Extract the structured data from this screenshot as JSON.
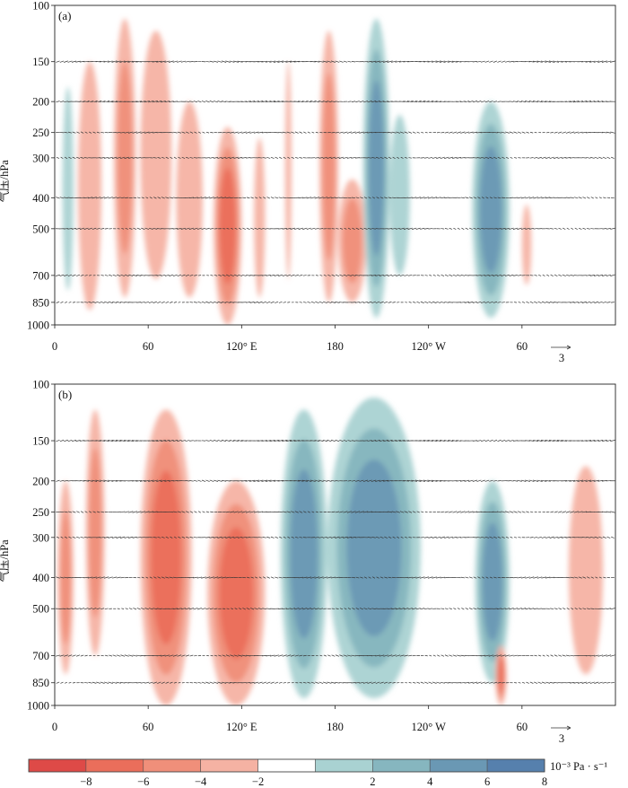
{
  "chart_data": {
    "type": "heatmap",
    "panels": [
      {
        "label": "(a)",
        "ylabel": "气压/hPa",
        "x_ticks": [
          "0",
          "60",
          "120° E",
          "180",
          "120° W",
          "60"
        ],
        "x_tick_positions_lon": [
          0,
          60,
          120,
          180,
          240,
          300
        ],
        "xlim": [
          0,
          360
        ],
        "y_ticks": [
          "100",
          "150",
          "200",
          "250",
          "300",
          "400",
          "500",
          "700",
          "850",
          "1000"
        ],
        "y_tick_values": [
          100,
          150,
          200,
          250,
          300,
          400,
          500,
          700,
          850,
          1000
        ],
        "ylim": [
          1000,
          100
        ],
        "y_scale": "log",
        "vector_scale_label": "3",
        "omega_features": [
          {
            "lon": [
              15,
              30
            ],
            "p": [
              150,
              900
            ],
            "peak": -4
          },
          {
            "lon": [
              38,
              52
            ],
            "p": [
              110,
              820
            ],
            "peak": -5
          },
          {
            "lon": [
              55,
              75
            ],
            "p": [
              120,
              720
            ],
            "peak": -4
          },
          {
            "lon": [
              78,
              95
            ],
            "p": [
              200,
              820
            ],
            "peak": -4
          },
          {
            "lon": [
              102,
              120
            ],
            "p": [
              240,
              1000
            ],
            "peak": -8
          },
          {
            "lon": [
              128,
              135
            ],
            "p": [
              260,
              820
            ],
            "peak": -4
          },
          {
            "lon": [
              148,
              152
            ],
            "p": [
              150,
              720
            ],
            "peak": -4
          },
          {
            "lon": [
              170,
              182
            ],
            "p": [
              120,
              850
            ],
            "peak": -5
          },
          {
            "lon": [
              182,
              200
            ],
            "p": [
              350,
              850
            ],
            "peak": -6
          },
          {
            "lon": [
              198,
              215
            ],
            "p": [
              110,
              950
            ],
            "peak": 8
          },
          {
            "lon": [
              215,
              228
            ],
            "p": [
              220,
              700
            ],
            "peak": 4
          },
          {
            "lon": [
              268,
              292
            ],
            "p": [
              200,
              950
            ],
            "peak": 8
          },
          {
            "lon": [
              300,
              306
            ],
            "p": [
              420,
              750
            ],
            "peak": -4
          },
          {
            "lon": [
              5,
              12
            ],
            "p": [
              180,
              780
            ],
            "peak": 2
          }
        ]
      },
      {
        "label": "(b)",
        "ylabel": "气压/hPa",
        "x_ticks": [
          "0",
          "60",
          "120° E",
          "180",
          "120° W",
          "60"
        ],
        "x_tick_positions_lon": [
          0,
          60,
          120,
          180,
          240,
          300
        ],
        "xlim": [
          0,
          360
        ],
        "y_ticks": [
          "100",
          "150",
          "200",
          "250",
          "300",
          "400",
          "500",
          "700",
          "850",
          "1000"
        ],
        "y_tick_values": [
          100,
          150,
          200,
          250,
          300,
          400,
          500,
          700,
          850,
          1000
        ],
        "ylim": [
          1000,
          100
        ],
        "y_scale": "log",
        "vector_scale_label": "3",
        "omega_features": [
          {
            "lon": [
              2,
              12
            ],
            "p": [
              200,
              800
            ],
            "peak": -6
          },
          {
            "lon": [
              20,
              32
            ],
            "p": [
              120,
              700
            ],
            "peak": -5
          },
          {
            "lon": [
              55,
              88
            ],
            "p": [
              120,
              1000
            ],
            "peak": -8
          },
          {
            "lon": [
              98,
              135
            ],
            "p": [
              200,
              1000
            ],
            "peak": -8
          },
          {
            "lon": [
              145,
              175
            ],
            "p": [
              120,
              950
            ],
            "peak": 8
          },
          {
            "lon": [
              175,
              235
            ],
            "p": [
              110,
              950
            ],
            "peak": 8
          },
          {
            "lon": [
              270,
              292
            ],
            "p": [
              200,
              850
            ],
            "peak": 8
          },
          {
            "lon": [
              283,
              290
            ],
            "p": [
              650,
              1000
            ],
            "peak": -8
          },
          {
            "lon": [
              330,
              352
            ],
            "p": [
              180,
              800
            ],
            "peak": -4
          }
        ]
      }
    ],
    "colorbar": {
      "levels": [
        -10,
        -8,
        -6,
        -4,
        -2,
        2,
        4,
        6,
        8,
        10
      ],
      "tick_labels": [
        "−8",
        "−6",
        "−4",
        "−2",
        "2",
        "4",
        "6",
        "8"
      ],
      "colors": [
        "#de4a47",
        "#ea6e5b",
        "#f08f7a",
        "#f5b2a3",
        "#ffffff",
        "#a9d2d2",
        "#86b6bf",
        "#6a98b4",
        "#5680ad"
      ],
      "units": "10⁻³ Pa · s⁻¹"
    }
  }
}
